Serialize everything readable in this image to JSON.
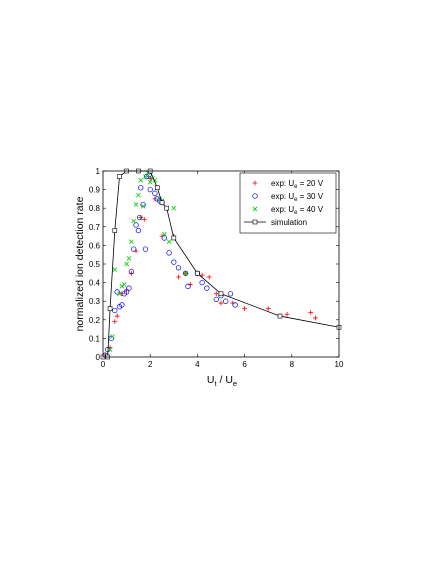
{
  "chart_data": {
    "type": "scatter",
    "xlabel_main": "U",
    "xlabel_sub1": "t",
    "xlabel_mid": " / U",
    "xlabel_sub2": "e",
    "ylabel": "normalized ion detection rate",
    "xlim": [
      0,
      10
    ],
    "ylim": [
      0,
      1
    ],
    "xticks": [
      "0",
      "2",
      "4",
      "6",
      "8",
      "10"
    ],
    "yticks": [
      "0",
      "0.1",
      "0.2",
      "0.3",
      "0.4",
      "0.5",
      "0.6",
      "0.7",
      "0.8",
      "0.9",
      "1"
    ],
    "legend_position": "top-right",
    "series": [
      {
        "name_prefix": "exp: U",
        "name_sub": "e",
        "name_suffix": " = 20 V",
        "marker": "plus",
        "color": "#ff0000",
        "points": [
          [
            0.1,
            0.01
          ],
          [
            0.3,
            0.05
          ],
          [
            0.5,
            0.19
          ],
          [
            0.6,
            0.22
          ],
          [
            0.8,
            0.34
          ],
          [
            1.0,
            0.36
          ],
          [
            1.2,
            0.45
          ],
          [
            1.4,
            0.57
          ],
          [
            1.6,
            0.75
          ],
          [
            1.75,
            0.74
          ],
          [
            2.0,
            0.96
          ],
          [
            2.2,
            0.85
          ],
          [
            2.5,
            0.65
          ],
          [
            3.0,
            0.65
          ],
          [
            3.2,
            0.43
          ],
          [
            3.5,
            0.45
          ],
          [
            3.7,
            0.39
          ],
          [
            4.0,
            0.45
          ],
          [
            4.2,
            0.44
          ],
          [
            4.5,
            0.43
          ],
          [
            4.8,
            0.34
          ],
          [
            5.0,
            0.29
          ],
          [
            5.5,
            0.29
          ],
          [
            6.0,
            0.26
          ],
          [
            7.0,
            0.26
          ],
          [
            7.5,
            0.22
          ],
          [
            7.8,
            0.23
          ],
          [
            8.8,
            0.24
          ],
          [
            9.0,
            0.21
          ]
        ]
      },
      {
        "name_prefix": "exp: U",
        "name_sub": "e",
        "name_suffix": " = 30 V",
        "marker": "circle",
        "color": "#0000ff",
        "points": [
          [
            0.1,
            0.01
          ],
          [
            0.2,
            0.04
          ],
          [
            0.35,
            0.1
          ],
          [
            0.5,
            0.25
          ],
          [
            0.6,
            0.35
          ],
          [
            0.7,
            0.27
          ],
          [
            0.8,
            0.28
          ],
          [
            0.9,
            0.34
          ],
          [
            1.0,
            0.35
          ],
          [
            1.1,
            0.37
          ],
          [
            1.2,
            0.46
          ],
          [
            1.3,
            0.58
          ],
          [
            1.4,
            0.71
          ],
          [
            1.5,
            0.68
          ],
          [
            1.55,
            0.75
          ],
          [
            1.6,
            0.91
          ],
          [
            1.7,
            0.82
          ],
          [
            1.8,
            0.58
          ],
          [
            1.85,
            0.97
          ],
          [
            1.95,
            0.98
          ],
          [
            2.0,
            0.9
          ],
          [
            2.2,
            0.88
          ],
          [
            2.3,
            0.85
          ],
          [
            2.4,
            0.84
          ],
          [
            2.5,
            0.83
          ],
          [
            2.6,
            0.64
          ],
          [
            2.8,
            0.56
          ],
          [
            3.0,
            0.51
          ],
          [
            3.2,
            0.48
          ],
          [
            3.5,
            0.45
          ],
          [
            3.6,
            0.38
          ],
          [
            4.0,
            0.45
          ],
          [
            4.2,
            0.4
          ],
          [
            4.4,
            0.37
          ],
          [
            4.8,
            0.31
          ],
          [
            5.0,
            0.33
          ],
          [
            5.2,
            0.3
          ],
          [
            5.4,
            0.34
          ],
          [
            5.6,
            0.28
          ]
        ]
      },
      {
        "name_prefix": "exp: U",
        "name_sub": "e",
        "name_suffix": " = 40 V",
        "marker": "x",
        "color": "#00cc00",
        "points": [
          [
            0.3,
            0.04
          ],
          [
            0.4,
            0.11
          ],
          [
            0.5,
            0.47
          ],
          [
            0.7,
            0.34
          ],
          [
            0.8,
            0.38
          ],
          [
            0.9,
            0.39
          ],
          [
            1.0,
            0.5
          ],
          [
            1.1,
            0.53
          ],
          [
            1.2,
            0.62
          ],
          [
            1.3,
            0.73
          ],
          [
            1.4,
            0.82
          ],
          [
            1.5,
            0.87
          ],
          [
            1.6,
            0.95
          ],
          [
            1.7,
            0.81
          ],
          [
            1.8,
            0.97
          ],
          [
            1.9,
            0.99
          ],
          [
            2.0,
            0.94
          ],
          [
            2.1,
            0.96
          ],
          [
            2.2,
            0.95
          ],
          [
            2.3,
            0.91
          ],
          [
            2.4,
            0.85
          ],
          [
            2.5,
            0.84
          ],
          [
            2.6,
            0.66
          ],
          [
            2.8,
            0.62
          ],
          [
            3.0,
            0.8
          ],
          [
            3.5,
            0.45
          ]
        ]
      },
      {
        "name": "simulation",
        "marker": "square",
        "color": "#000000",
        "line": true,
        "points": [
          [
            0.0,
            0.0
          ],
          [
            0.2,
            0.0
          ],
          [
            0.3,
            0.26
          ],
          [
            0.5,
            0.68
          ],
          [
            0.7,
            0.97
          ],
          [
            1.0,
            1.0
          ],
          [
            1.5,
            1.0
          ],
          [
            2.0,
            1.0
          ],
          [
            2.3,
            0.91
          ],
          [
            2.5,
            0.83
          ],
          [
            2.7,
            0.8
          ],
          [
            3.0,
            0.64
          ],
          [
            4.0,
            0.45
          ],
          [
            5.0,
            0.34
          ],
          [
            7.5,
            0.22
          ],
          [
            10.0,
            0.16
          ]
        ]
      }
    ]
  }
}
